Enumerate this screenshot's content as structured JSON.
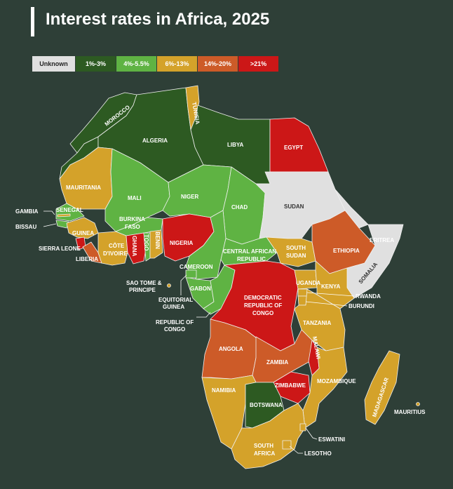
{
  "title": "Interest rates in Africa, 2025",
  "legend": [
    {
      "label": "Unknown",
      "color": "#e0e0e0"
    },
    {
      "label": "1%-3%",
      "color": "#2d5a22"
    },
    {
      "label": "4%-5.5%",
      "color": "#5fb343"
    },
    {
      "label": "6%-13%",
      "color": "#d4a22a"
    },
    {
      "label": "14%-20%",
      "color": "#cd5b28"
    },
    {
      "label": ">21%",
      "color": "#cc1717"
    }
  ],
  "countries": {
    "morocco": "MOROCCO",
    "algeria": "ALGERIA",
    "tunisia": "TUNISIA",
    "libya": "LIBYA",
    "egypt": "EGYPT",
    "mauritania": "MAURITANIA",
    "mali": "MALI",
    "niger": "NIGER",
    "chad": "CHAD",
    "sudan": "SUDAN",
    "eritrea": "ERITREA",
    "gambia": "GAMBIA",
    "senegal": "SENEGAL",
    "bissau": "BISSAU",
    "guinea": "GUINEA",
    "burkina_line1": "BURKINA",
    "burkina_line2": "FASO",
    "sierra_leone": "SIERRA LEONE",
    "liberia": "LIBERIA",
    "cote_line1": "CÔTE",
    "cote_line2": "D'IVOIRE",
    "ghana": "GHANA",
    "togo": "TOGO",
    "benin": "BENIN",
    "nigeria": "NIGERIA",
    "car_line1": "CENTRAL AFRICAN",
    "car_line2": "REPUBLIC",
    "south_sudan_line1": "SOUTH",
    "south_sudan_line2": "SUDAN",
    "ethiopia": "ETHIOPIA",
    "somalia": "SOMALIA",
    "cameroon": "CAMEROON",
    "sao_tome_line1": "SAO TOME &",
    "sao_tome_line2": "PRINCIPE",
    "gabon": "GABON",
    "eq_guinea_line1": "EQUITORIAL",
    "eq_guinea_line2": "GUINEA",
    "rep_congo_line1": "REPUBLIC OF",
    "rep_congo_line2": "CONGO",
    "drc_line1": "DEMOCRATIC",
    "drc_line2": "REPUBLIC OF",
    "drc_line3": "CONGO",
    "uganda": "UGANDA",
    "kenya": "KENYA",
    "rwanda": "RWANDA",
    "burundi": "BURUNDI",
    "tanzania": "TANZANIA",
    "angola": "ANGOLA",
    "zambia": "ZAMBIA",
    "malawi": "MALAWI",
    "mozambique": "MOZAMBIQUE",
    "madagascar": "MADAGASCAR",
    "mauritius": "MAURITIUS",
    "namibia": "NAMIBIA",
    "zimbabwe": "ZIMBABWE",
    "botswana": "BOTSWANA",
    "eswatini": "ESWATINI",
    "south_africa_line1": "SOUTH",
    "south_africa_line2": "AFRICA",
    "lesotho": "LESOTHO"
  }
}
